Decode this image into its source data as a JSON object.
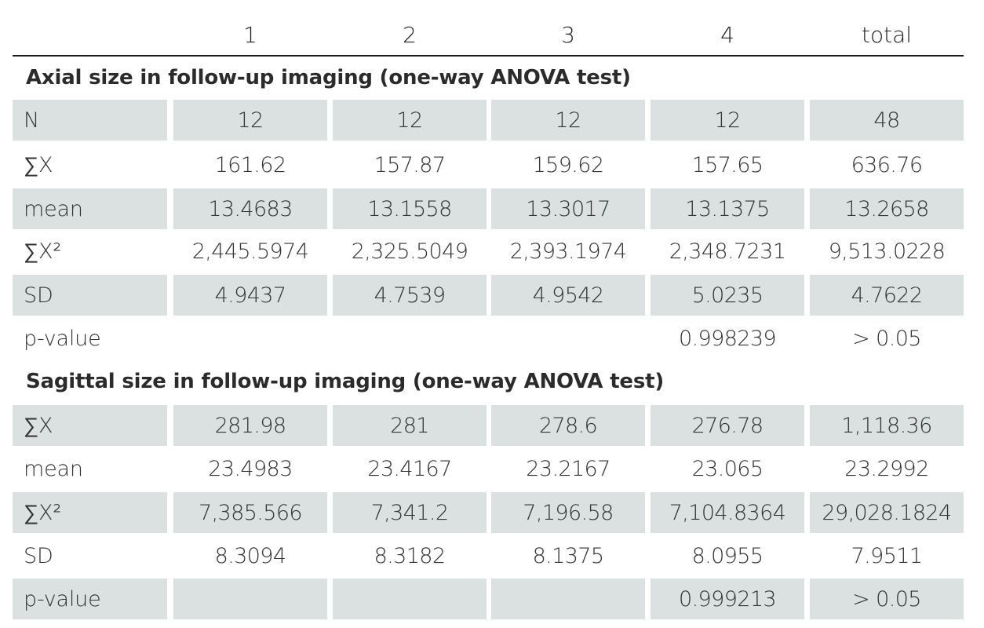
{
  "header": {
    "columns": [
      "",
      "1",
      "2",
      "3",
      "4",
      "total"
    ]
  },
  "sections": [
    {
      "title": "Axial size in follow-up imaging (one-way ANOVA test)",
      "rows": [
        {
          "label": "N",
          "values": [
            "12",
            "12",
            "12",
            "12",
            "48"
          ]
        },
        {
          "label": "∑X",
          "values": [
            "161.62",
            "157.87",
            "159.62",
            "157.65",
            "636.76"
          ]
        },
        {
          "label": "mean",
          "values": [
            "13.4683",
            "13.1558",
            "13.3017",
            "13.1375",
            "13.2658"
          ]
        },
        {
          "label": "∑X²",
          "values": [
            "2,445.5974",
            "2,325.5049",
            "2,393.1974",
            "2,348.7231",
            "9,513.0228"
          ]
        },
        {
          "label": "SD",
          "values": [
            "4.9437",
            "4.7539",
            "4.9542",
            "5.0235",
            "4.7622"
          ]
        },
        {
          "label": "p-value",
          "values": [
            "",
            "",
            "",
            "0.998239",
            "> 0.05"
          ]
        }
      ]
    },
    {
      "title": "Sagittal size in follow-up imaging (one-way ANOVA test)",
      "rows": [
        {
          "label": "∑X",
          "values": [
            "281.98",
            "281",
            "278.6",
            "276.78",
            "1,118.36"
          ]
        },
        {
          "label": "mean",
          "values": [
            "23.4983",
            "23.4167",
            "23.2167",
            "23.065",
            "23.2992"
          ]
        },
        {
          "label": "∑X²",
          "values": [
            "7,385.566",
            "7,341.2",
            "7,196.58",
            "7,104.8364",
            "29,028.1824"
          ]
        },
        {
          "label": "SD",
          "values": [
            "8.3094",
            "8.3182",
            "8.1375",
            "8.0955",
            "7.9511"
          ]
        },
        {
          "label": "p-value",
          "values": [
            "",
            "",
            "",
            "0.999213",
            "> 0.05"
          ]
        }
      ]
    }
  ]
}
